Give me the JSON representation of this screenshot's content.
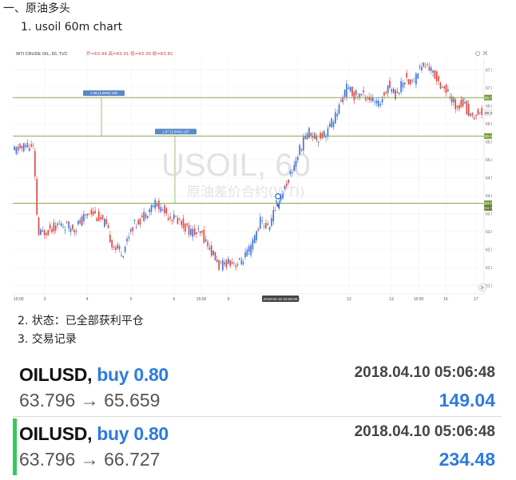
{
  "heading": "一、原油多头",
  "list": {
    "item1": "1.  usoil 60m chart",
    "item2": "2.  状态：已全部获利平仓",
    "item3": "3.  交易记录"
  },
  "chart": {
    "header": "WTI CRUDE OIL, 60, TVC",
    "ohlc": "开=63.44  高=63.91  低=63.38  收=63.81",
    "watermark_main": "USOIL, 60",
    "watermark_sub": "原油差价合约(WTI)",
    "y_ticks": [
      "67.50",
      "67.00",
      "66.50",
      "66.00",
      "65.50",
      "65.00",
      "64.50",
      "64.00",
      "63.50",
      "63.00",
      "62.50",
      "62.00",
      "61.50"
    ],
    "x_ticks": [
      "3",
      "4",
      "5",
      "6",
      "15:00",
      "9",
      "11",
      "12",
      "13",
      "15:00",
      "16",
      "17"
    ],
    "x_start_label": "15:00",
    "crosshair_label": "2018-04-10 10:00:00",
    "levels": [
      {
        "label": "66.73",
        "value": 66.73,
        "color": "#7a9a3c"
      },
      {
        "label": "65.66",
        "value": 65.66,
        "color": "#7a9a3c"
      },
      {
        "label": "63.79",
        "value": 63.79,
        "color": "#7a9a3c"
      }
    ],
    "current_price_label": "66.31",
    "current_price_inline": "63.70",
    "measure1": "1.08 (1.69%) 108",
    "measure2": "1.87 (2.94%) 187",
    "ylim": [
      61.4,
      67.8
    ],
    "colors": {
      "up": "#3a6fd8",
      "down": "#e0413a",
      "level": "#7a9a3c",
      "grid": "#eeeeee"
    }
  },
  "trades": [
    {
      "pair": "OILUSD,",
      "side": "buy 0.80",
      "datetime": "2018.04.10 05:06:48",
      "prices": "63.796 → 65.659",
      "profit": "149.04"
    },
    {
      "pair": "OILUSD,",
      "side": "buy 0.80",
      "datetime": "2018.04.10 05:06:48",
      "prices": "63.796 → 66.727",
      "profit": "234.48"
    }
  ]
}
